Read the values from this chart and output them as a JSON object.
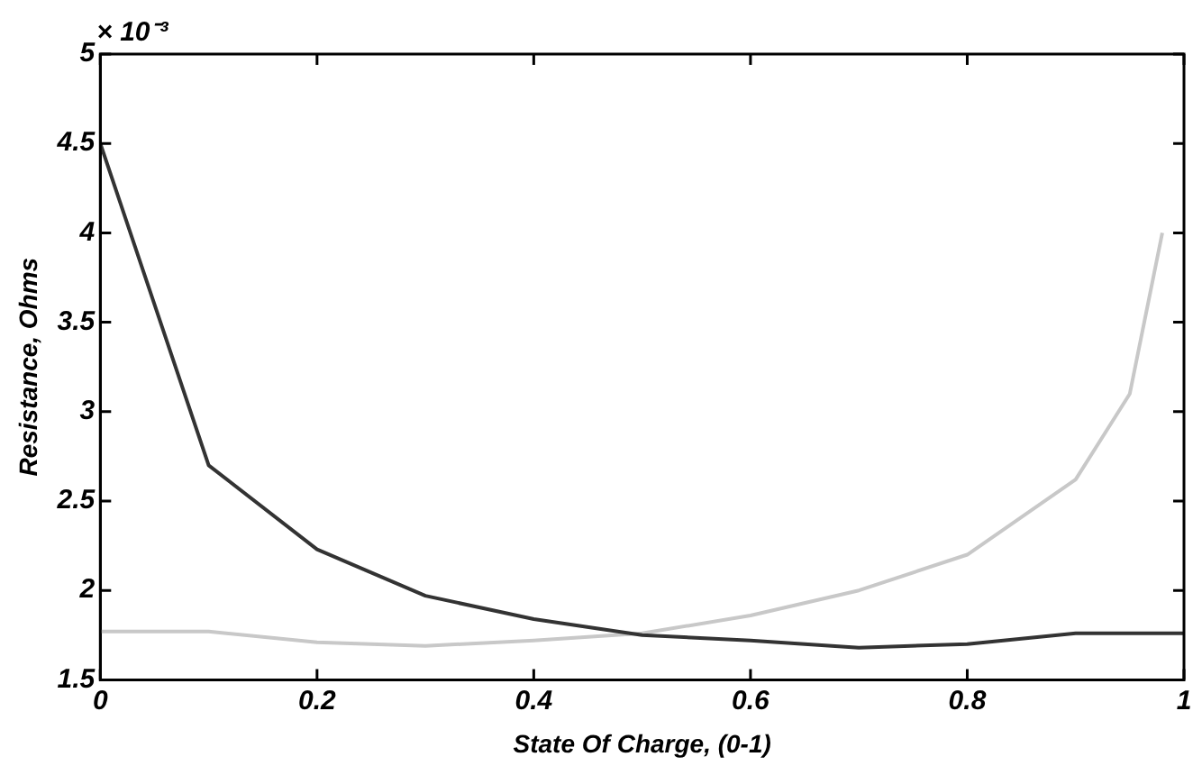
{
  "chart_data": {
    "type": "line",
    "xlabel": "State Of Charge, (0-1)",
    "ylabel": "Resistance, Ohms",
    "annotations": [
      "× 10⁻³"
    ],
    "x": [
      0,
      0.1,
      0.2,
      0.3,
      0.4,
      0.5,
      0.6,
      0.7,
      0.8,
      0.9,
      1
    ],
    "series": [
      {
        "color": "#333333",
        "values": [
          4.5,
          2.7,
          2.23,
          1.97,
          1.84,
          1.75,
          1.72,
          1.68,
          1.7,
          1.76,
          1.76
        ]
      },
      {
        "color": "#c8c8c8",
        "x": [
          0,
          0.1,
          0.2,
          0.3,
          0.4,
          0.5,
          0.6,
          0.7,
          0.8,
          0.9,
          0.95,
          0.98
        ],
        "values": [
          1.77,
          1.77,
          1.71,
          1.69,
          1.72,
          1.76,
          1.86,
          2.0,
          2.2,
          2.62,
          3.1,
          4.0
        ]
      }
    ],
    "xlim": [
      0,
      1
    ],
    "xticks": [
      0,
      0.2,
      0.4,
      0.6,
      0.8,
      1
    ],
    "ylim": [
      1.5,
      5
    ],
    "yticks": [
      1.5,
      2,
      2.5,
      3,
      3.5,
      4,
      4.5,
      5
    ],
    "grid": false,
    "legend": false,
    "marker": "none",
    "line_style": "solid"
  }
}
